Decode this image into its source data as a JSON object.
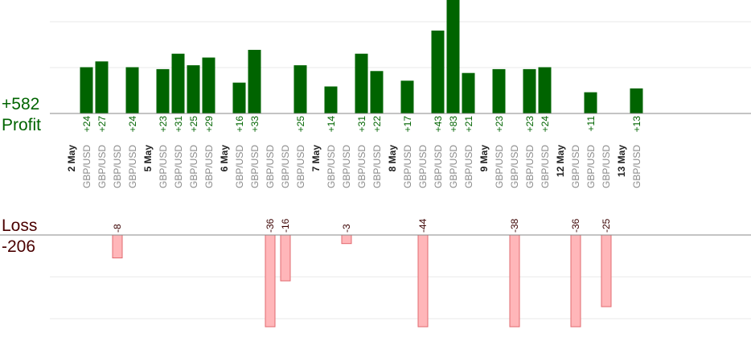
{
  "summary": {
    "profit_total": "+582",
    "profit_label": "Profit",
    "loss_label": "Loss",
    "loss_total": "-206"
  },
  "colors": {
    "profit_bar": "#006400",
    "loss_bar_fill": "#ffb6b9",
    "loss_bar_stroke": "#e26a6f",
    "profit_text": "#006400",
    "loss_text": "#3a0000",
    "date_text": "#222222",
    "pair_text": "#8a8a8a",
    "grid": "#e8e8e8",
    "axis": "#888888"
  },
  "chart_data": {
    "type": "bar",
    "columns": [
      {
        "date": "2 May"
      },
      {
        "pair": "GBP/USD",
        "value": 24
      },
      {
        "pair": "GBP/USD",
        "value": 27
      },
      {
        "pair": "GBP/USD",
        "value": -8
      },
      {
        "pair": "GBP/USD",
        "value": 24
      },
      {
        "date": "5 May"
      },
      {
        "pair": "GBP/USD",
        "value": 23
      },
      {
        "pair": "GBP/USD",
        "value": 31
      },
      {
        "pair": "GBP/USD",
        "value": 25
      },
      {
        "pair": "GBP/USD",
        "value": 29
      },
      {
        "date": "6 May"
      },
      {
        "pair": "GBP/USD",
        "value": 16
      },
      {
        "pair": "GBP/USD",
        "value": 33
      },
      {
        "pair": "GBP/USD",
        "value": -36
      },
      {
        "pair": "GBP/USD",
        "value": -16
      },
      {
        "pair": "GBP/USD",
        "value": 25
      },
      {
        "date": "7 May"
      },
      {
        "pair": "GBP/USD",
        "value": 14
      },
      {
        "pair": "GBP/USD",
        "value": -3
      },
      {
        "pair": "GBP/USD",
        "value": 31
      },
      {
        "pair": "GBP/USD",
        "value": 22
      },
      {
        "date": "8 May"
      },
      {
        "pair": "GBP/USD",
        "value": 17
      },
      {
        "pair": "GBP/USD",
        "value": -44
      },
      {
        "pair": "GBP/USD",
        "value": 43
      },
      {
        "pair": "GBP/USD",
        "value": 83
      },
      {
        "pair": "GBP/USD",
        "value": 21
      },
      {
        "date": "9 May"
      },
      {
        "pair": "GBP/USD",
        "value": 23
      },
      {
        "pair": "GBP/USD",
        "value": -38
      },
      {
        "pair": "GBP/USD",
        "value": 23
      },
      {
        "pair": "GBP/USD",
        "value": 24
      },
      {
        "date": "12 May"
      },
      {
        "pair": "GBP/USD",
        "value": -36
      },
      {
        "pair": "GBP/USD",
        "value": 11
      },
      {
        "pair": "GBP/USD",
        "value": -25
      },
      {
        "date": "13 May"
      },
      {
        "pair": "GBP/USD",
        "value": 13
      }
    ],
    "profit_axis_max": 24,
    "loss_axis_max": 30,
    "grid": true
  }
}
